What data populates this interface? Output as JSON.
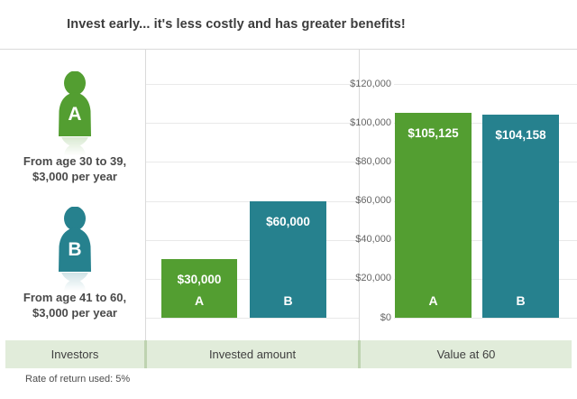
{
  "title": "Invest early... it's less costly and has greater benefits!",
  "investors": [
    {
      "letter": "A",
      "line1": "From age 30 to 39,",
      "line2": "$3,000 per year"
    },
    {
      "letter": "B",
      "line1": "From age 41 to 60,",
      "line2": "$3,000 per year"
    }
  ],
  "chart_data": {
    "type": "bar",
    "title": "Invest early... it's less costly and has greater benefits!",
    "categories": [
      "Invested amount",
      "Value at 60"
    ],
    "series": [
      {
        "name": "A",
        "color": "#539e31",
        "values": [
          30000,
          105125
        ],
        "labels": [
          "$30,000",
          "$105,125"
        ]
      },
      {
        "name": "B",
        "color": "#26818e",
        "values": [
          60000,
          104158
        ],
        "labels": [
          "$60,000",
          "$104,158"
        ]
      }
    ],
    "ylim": [
      0,
      120000
    ],
    "grid": true,
    "y_ticks": [
      {
        "value": 120000,
        "label": "$120,000"
      },
      {
        "value": 100000,
        "label": "$100,000"
      },
      {
        "value": 80000,
        "label": "$80,000"
      },
      {
        "value": 60000,
        "label": "$60,000"
      },
      {
        "value": 40000,
        "label": "$40,000"
      },
      {
        "value": 20000,
        "label": "$20,000"
      },
      {
        "value": 0,
        "label": "$0"
      }
    ]
  },
  "banner": {
    "columns": [
      "Investors",
      "Invested amount",
      "Value at 60"
    ]
  },
  "footnote": "Rate of return used: 5%",
  "colors": {
    "investor_a": "#539e31",
    "investor_b": "#26818e",
    "banner_bg": "#e1ecda",
    "banner_divider": "#bed3b0",
    "gridline": "#e9e9e9",
    "panel_border": "#dadada"
  }
}
